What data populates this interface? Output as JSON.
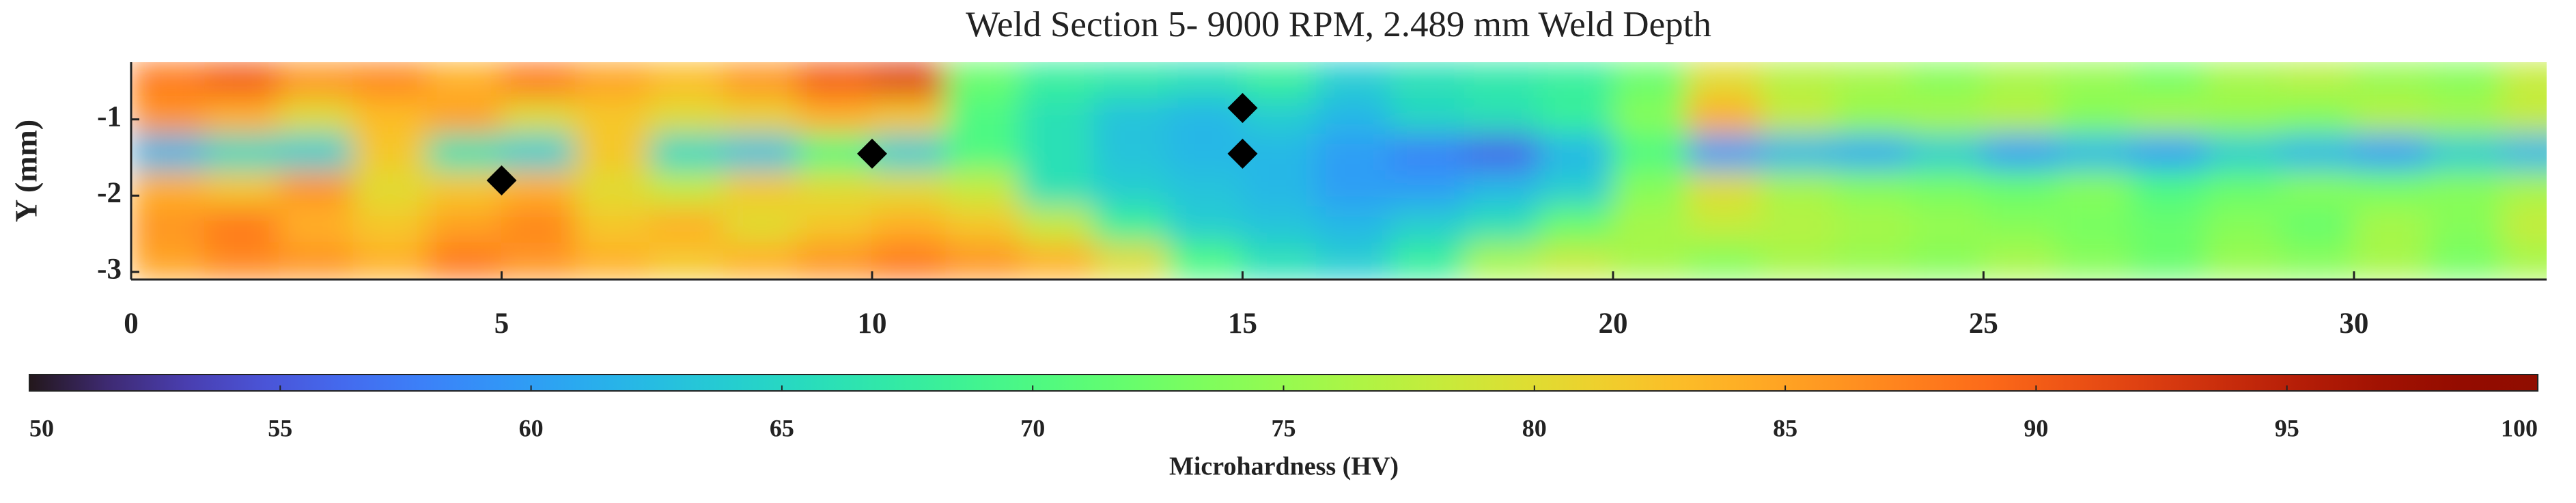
{
  "chart_data": {
    "type": "heatmap",
    "title": "Weld Section 5- 9000 RPM, 2.489 mm Weld Depth",
    "ylabel": "Y (mm)",
    "colorbar_label": "Microhardness (HV)",
    "colormap": "turbo",
    "clim": [
      50,
      100
    ],
    "cticks": [
      50,
      55,
      60,
      65,
      70,
      75,
      80,
      85,
      90,
      95,
      100
    ],
    "xlim": [
      0,
      32.6
    ],
    "ylim": [
      -3.1,
      -0.25
    ],
    "xticks": [
      0,
      5,
      10,
      15,
      20,
      25,
      30
    ],
    "yticks": [
      -1,
      -2,
      -3
    ],
    "x": [
      0.5,
      1.5,
      2.5,
      3.5,
      4.5,
      5.5,
      6.5,
      7.5,
      8.5,
      9.5,
      10.5,
      11.5,
      12.5,
      13.5,
      14.5,
      15.5,
      16.5,
      17.5,
      18.5,
      19.5,
      20.5,
      21.5,
      22.5,
      23.5,
      24.5,
      25.5,
      26.5,
      27.5,
      28.5,
      29.5,
      30.5,
      31.5,
      32.5
    ],
    "y": [
      -0.49,
      -0.97,
      -1.44,
      -1.92,
      -2.39,
      -2.86
    ],
    "z": [
      [
        88,
        90,
        86,
        87,
        84,
        88,
        85,
        83,
        86,
        90,
        92,
        72,
        68,
        67,
        66,
        68,
        64,
        66,
        67,
        68,
        72,
        80,
        77,
        76,
        74,
        76,
        75,
        73,
        76,
        77,
        75,
        74,
        78
      ],
      [
        86,
        84,
        80,
        83,
        85,
        80,
        82,
        80,
        81,
        84,
        82,
        70,
        66,
        63,
        62,
        64,
        62,
        65,
        66,
        68,
        74,
        84,
        78,
        75,
        76,
        77,
        74,
        76,
        75,
        74,
        77,
        76,
        78
      ],
      [
        62,
        65,
        64,
        82,
        66,
        64,
        82,
        65,
        63,
        70,
        64,
        70,
        66,
        63,
        62,
        62,
        60,
        58,
        56,
        62,
        70,
        60,
        62,
        61,
        64,
        60,
        62,
        60,
        64,
        62,
        60,
        64,
        62
      ],
      [
        84,
        82,
        86,
        80,
        82,
        84,
        80,
        78,
        82,
        80,
        80,
        78,
        66,
        64,
        63,
        62,
        60,
        60,
        62,
        64,
        74,
        80,
        76,
        74,
        73,
        72,
        74,
        70,
        72,
        74,
        73,
        74,
        76
      ],
      [
        86,
        88,
        84,
        82,
        85,
        87,
        82,
        84,
        80,
        82,
        84,
        82,
        78,
        68,
        64,
        63,
        62,
        64,
        66,
        72,
        76,
        78,
        77,
        76,
        75,
        74,
        73,
        72,
        74,
        72,
        76,
        74,
        78
      ],
      [
        85,
        87,
        86,
        84,
        88,
        86,
        84,
        82,
        84,
        86,
        88,
        86,
        84,
        80,
        70,
        66,
        64,
        68,
        76,
        78,
        76,
        74,
        76,
        75,
        74,
        76,
        74,
        72,
        75,
        74,
        76,
        73,
        76
      ]
    ],
    "markers": {
      "color": "#000000",
      "x": [
        5,
        10,
        15,
        15
      ],
      "y": [
        -1.8,
        -1.45,
        -0.85,
        -1.45
      ]
    }
  }
}
